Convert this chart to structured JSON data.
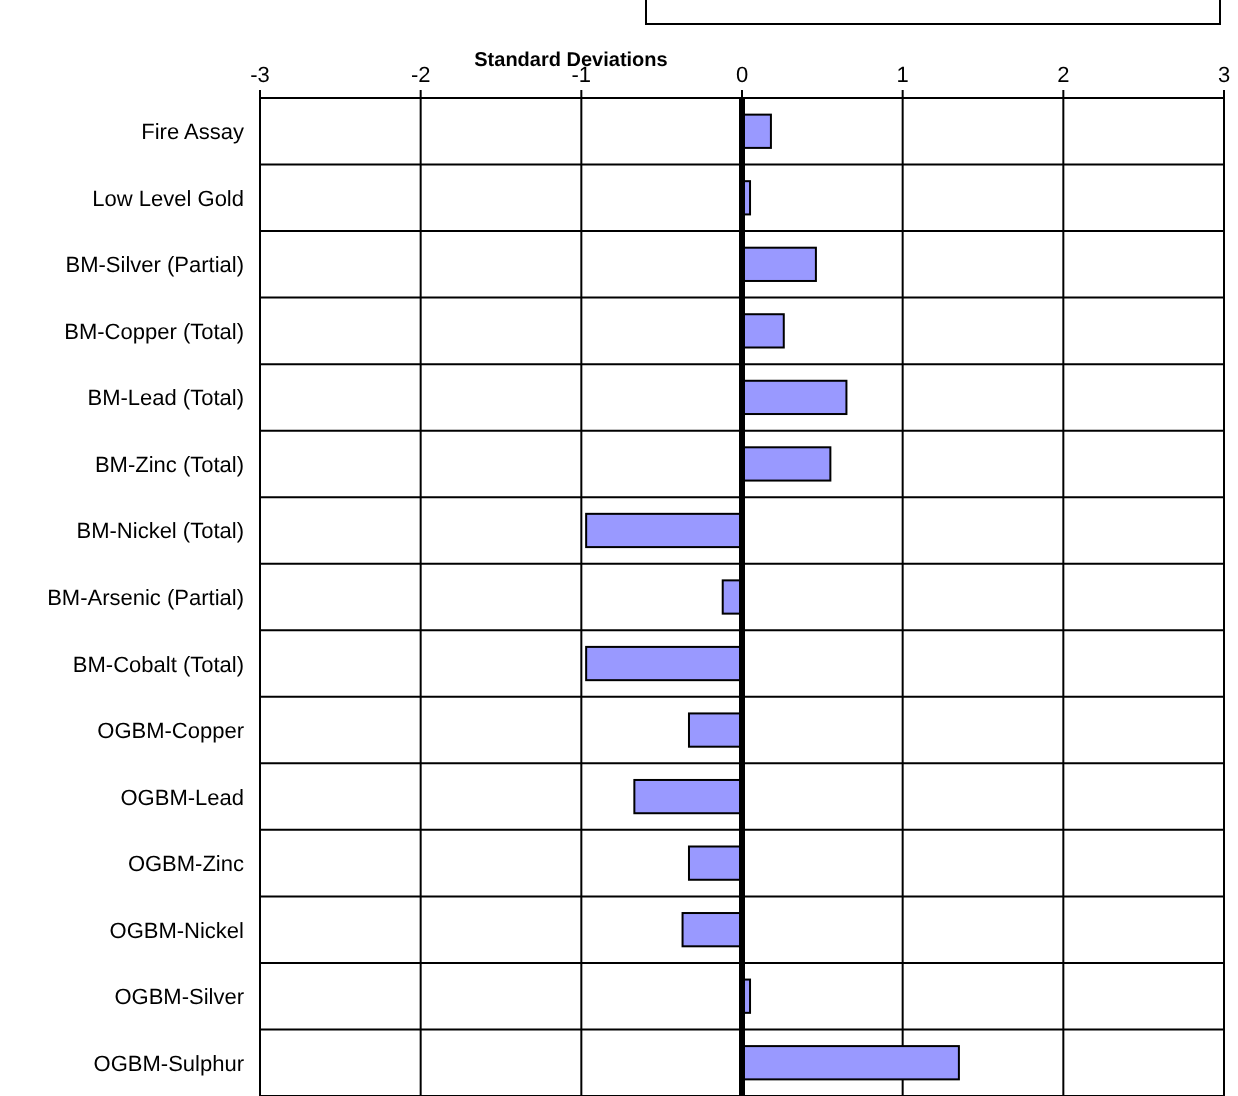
{
  "chart_data": {
    "type": "bar",
    "orientation": "horizontal",
    "xlabel": "Standard Deviations",
    "categories": [
      "Fire Assay",
      "Low Level Gold",
      "BM-Silver (Partial)",
      "BM-Copper (Total)",
      "BM-Lead (Total)",
      "BM-Zinc (Total)",
      "BM-Nickel (Total)",
      "BM-Arsenic (Partial)",
      "BM-Cobalt (Total)",
      "OGBM-Copper",
      "OGBM-Lead",
      "OGBM-Zinc",
      "OGBM-Nickel",
      "OGBM-Silver",
      "OGBM-Sulphur"
    ],
    "values": [
      0.18,
      0.05,
      0.46,
      0.26,
      0.65,
      0.55,
      -0.97,
      -0.12,
      -0.97,
      -0.33,
      -0.67,
      -0.33,
      -0.37,
      0.05,
      1.35
    ],
    "color": "#9999ff",
    "xlim": [
      -3,
      3
    ],
    "xticks": [
      -3,
      -2,
      -1,
      0,
      1,
      2,
      3
    ],
    "grid": true
  }
}
